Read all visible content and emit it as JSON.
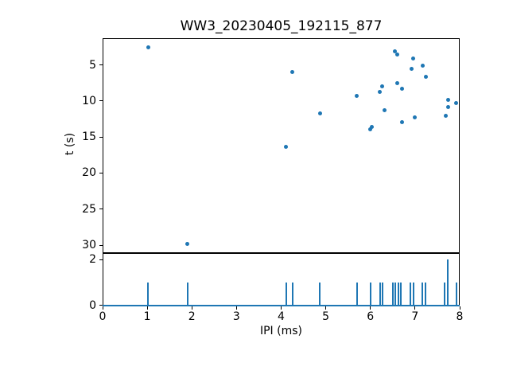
{
  "figure": {
    "background_color": "#ffffff",
    "accent_color": "#1f77b4",
    "text_color": "#000000"
  },
  "chart_data": [
    {
      "type": "scatter",
      "title": "WW3_20230405_192115_877",
      "xlabel": "",
      "ylabel": "t (s)",
      "xlim": [
        0,
        8
      ],
      "ylim": [
        31.1,
        1.3
      ],
      "y_axis_inverted": true,
      "yticks": [
        5,
        10,
        15,
        20,
        25,
        30
      ],
      "grid": false,
      "marker_color": "#1f77b4",
      "points": [
        {
          "x": 1.02,
          "t": 2.6
        },
        {
          "x": 1.9,
          "t": 29.8
        },
        {
          "x": 4.11,
          "t": 16.4
        },
        {
          "x": 4.25,
          "t": 6.0
        },
        {
          "x": 4.87,
          "t": 11.7
        },
        {
          "x": 5.7,
          "t": 9.3
        },
        {
          "x": 6.0,
          "t": 13.9
        },
        {
          "x": 6.03,
          "t": 13.6
        },
        {
          "x": 6.21,
          "t": 8.8
        },
        {
          "x": 6.26,
          "t": 8.0
        },
        {
          "x": 6.31,
          "t": 11.3
        },
        {
          "x": 6.55,
          "t": 3.1
        },
        {
          "x": 6.6,
          "t": 3.6
        },
        {
          "x": 6.61,
          "t": 7.5
        },
        {
          "x": 6.7,
          "t": 8.3
        },
        {
          "x": 6.71,
          "t": 12.9
        },
        {
          "x": 6.92,
          "t": 5.6
        },
        {
          "x": 6.95,
          "t": 4.1
        },
        {
          "x": 6.99,
          "t": 12.3
        },
        {
          "x": 7.17,
          "t": 5.1
        },
        {
          "x": 7.24,
          "t": 6.7
        },
        {
          "x": 7.68,
          "t": 12.1
        },
        {
          "x": 7.74,
          "t": 9.9
        },
        {
          "x": 7.75,
          "t": 10.9
        },
        {
          "x": 7.92,
          "t": 10.3
        }
      ]
    },
    {
      "type": "bar",
      "title": "",
      "xlabel": "IPI (ms)",
      "ylabel": "",
      "xlim": [
        0,
        8
      ],
      "ylim": [
        -0.04,
        2.29
      ],
      "xticks": [
        0,
        1,
        2,
        3,
        4,
        5,
        6,
        7,
        8
      ],
      "yticks": [
        0,
        2
      ],
      "grid": false,
      "bar_color": "#1f77b4",
      "baseline_value": 0,
      "spikes": [
        {
          "x": 1.02,
          "h": 1
        },
        {
          "x": 1.9,
          "h": 1
        },
        {
          "x": 4.11,
          "h": 1
        },
        {
          "x": 4.25,
          "h": 1
        },
        {
          "x": 4.87,
          "h": 1
        },
        {
          "x": 5.7,
          "h": 1
        },
        {
          "x": 6.0,
          "h": 1
        },
        {
          "x": 6.21,
          "h": 1
        },
        {
          "x": 6.27,
          "h": 1
        },
        {
          "x": 6.5,
          "h": 1
        },
        {
          "x": 6.56,
          "h": 1
        },
        {
          "x": 6.62,
          "h": 1
        },
        {
          "x": 6.68,
          "h": 1
        },
        {
          "x": 6.9,
          "h": 1
        },
        {
          "x": 6.96,
          "h": 1
        },
        {
          "x": 7.17,
          "h": 1
        },
        {
          "x": 7.23,
          "h": 1
        },
        {
          "x": 7.67,
          "h": 1
        },
        {
          "x": 7.74,
          "h": 2
        },
        {
          "x": 7.92,
          "h": 1
        }
      ]
    }
  ]
}
